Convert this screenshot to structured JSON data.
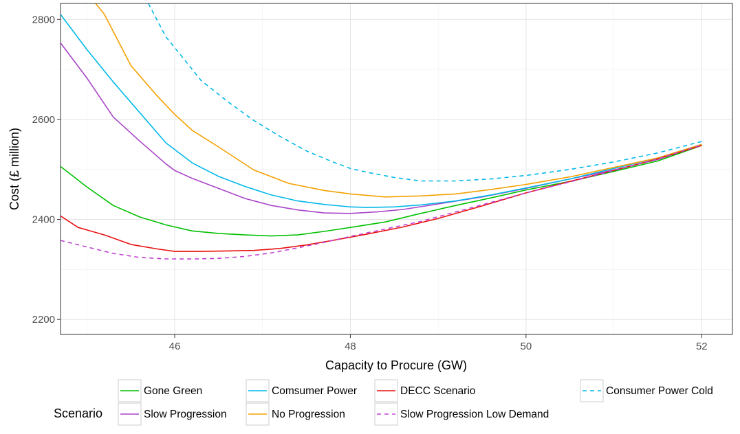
{
  "chart_data": {
    "type": "line",
    "xlabel": "Capacity to Procure (GW)",
    "ylabel": "Cost (£ million)",
    "xlim": [
      44.7,
      52.35
    ],
    "ylim": [
      2170,
      2832
    ],
    "x_ticks": [
      46,
      48,
      50,
      52
    ],
    "y_ticks": [
      2200,
      2400,
      2600,
      2800
    ],
    "grid": true,
    "legend_title": "Scenario",
    "legend_position": "bottom",
    "series": [
      {
        "name": "Gone Green",
        "color": "#00c000",
        "dash": "solid",
        "points": [
          [
            44.7,
            2506
          ],
          [
            45.0,
            2465
          ],
          [
            45.3,
            2428
          ],
          [
            45.6,
            2405
          ],
          [
            45.9,
            2389
          ],
          [
            46.2,
            2377
          ],
          [
            46.5,
            2372
          ],
          [
            46.8,
            2369
          ],
          [
            47.1,
            2367
          ],
          [
            47.4,
            2369
          ],
          [
            47.7,
            2376
          ],
          [
            48.0,
            2384
          ],
          [
            48.4,
            2395
          ],
          [
            48.8,
            2412
          ],
          [
            49.2,
            2428
          ],
          [
            49.6,
            2443
          ],
          [
            50.0,
            2459
          ],
          [
            50.5,
            2476
          ],
          [
            51.0,
            2496
          ],
          [
            51.5,
            2517
          ],
          [
            52.0,
            2548
          ]
        ]
      },
      {
        "name": "Slow Progression",
        "color": "#a844c8",
        "dash": "solid",
        "points": [
          [
            44.7,
            2753
          ],
          [
            45.0,
            2683
          ],
          [
            45.3,
            2605
          ],
          [
            45.6,
            2557
          ],
          [
            45.9,
            2511
          ],
          [
            46.0,
            2498
          ],
          [
            46.2,
            2482
          ],
          [
            46.5,
            2462
          ],
          [
            46.8,
            2442
          ],
          [
            47.1,
            2428
          ],
          [
            47.4,
            2419
          ],
          [
            47.7,
            2413
          ],
          [
            48.0,
            2412
          ],
          [
            48.3,
            2415
          ],
          [
            48.6,
            2420
          ],
          [
            49.0,
            2431
          ],
          [
            49.5,
            2445
          ],
          [
            50.0,
            2462
          ],
          [
            50.5,
            2481
          ],
          [
            51.0,
            2499
          ],
          [
            51.5,
            2520
          ],
          [
            52.0,
            2549
          ]
        ]
      },
      {
        "name": "Comsumer Power",
        "color": "#00b8e8",
        "dash": "solid",
        "points": [
          [
            44.7,
            2810
          ],
          [
            45.0,
            2740
          ],
          [
            45.3,
            2675
          ],
          [
            45.6,
            2614
          ],
          [
            45.9,
            2553
          ],
          [
            46.2,
            2513
          ],
          [
            46.5,
            2486
          ],
          [
            46.8,
            2466
          ],
          [
            47.1,
            2449
          ],
          [
            47.4,
            2437
          ],
          [
            47.7,
            2430
          ],
          [
            48.0,
            2425
          ],
          [
            48.2,
            2424
          ],
          [
            48.5,
            2425
          ],
          [
            48.8,
            2429
          ],
          [
            49.2,
            2437
          ],
          [
            49.6,
            2449
          ],
          [
            50.0,
            2463
          ],
          [
            50.5,
            2481
          ],
          [
            51.0,
            2502
          ],
          [
            51.5,
            2523
          ],
          [
            52.0,
            2550
          ]
        ]
      },
      {
        "name": "No Progression",
        "color": "#f5a000",
        "dash": "solid",
        "points": [
          [
            45.1,
            2832
          ],
          [
            45.2,
            2810
          ],
          [
            45.5,
            2708
          ],
          [
            45.8,
            2647
          ],
          [
            46.0,
            2610
          ],
          [
            46.2,
            2578
          ],
          [
            46.5,
            2545
          ],
          [
            46.9,
            2499
          ],
          [
            47.3,
            2472
          ],
          [
            47.7,
            2458
          ],
          [
            48.0,
            2451
          ],
          [
            48.4,
            2445
          ],
          [
            48.8,
            2447
          ],
          [
            49.2,
            2451
          ],
          [
            49.6,
            2460
          ],
          [
            50.0,
            2470
          ],
          [
            50.5,
            2485
          ],
          [
            51.0,
            2504
          ],
          [
            51.5,
            2523
          ],
          [
            52.0,
            2550
          ]
        ]
      },
      {
        "name": "DECC Scenario",
        "color": "#e81010",
        "dash": "solid",
        "points": [
          [
            44.7,
            2407
          ],
          [
            44.9,
            2384
          ],
          [
            45.2,
            2369
          ],
          [
            45.5,
            2350
          ],
          [
            45.8,
            2341
          ],
          [
            46.0,
            2336
          ],
          [
            46.3,
            2336
          ],
          [
            46.6,
            2337
          ],
          [
            46.9,
            2338
          ],
          [
            47.2,
            2342
          ],
          [
            47.5,
            2349
          ],
          [
            47.8,
            2358
          ],
          [
            48.2,
            2371
          ],
          [
            48.6,
            2385
          ],
          [
            49.0,
            2402
          ],
          [
            49.5,
            2427
          ],
          [
            50.0,
            2453
          ],
          [
            50.5,
            2476
          ],
          [
            51.0,
            2498
          ],
          [
            51.5,
            2521
          ],
          [
            52.0,
            2548
          ]
        ]
      },
      {
        "name": "Slow Progression Low Demand",
        "color": "#c040d0",
        "dash": "dashed",
        "points": [
          [
            44.7,
            2358
          ],
          [
            45.0,
            2345
          ],
          [
            45.3,
            2332
          ],
          [
            45.6,
            2324
          ],
          [
            45.9,
            2321
          ],
          [
            46.2,
            2321
          ],
          [
            46.5,
            2322
          ],
          [
            46.8,
            2326
          ],
          [
            47.1,
            2333
          ],
          [
            47.4,
            2343
          ],
          [
            47.7,
            2354
          ],
          [
            48.0,
            2366
          ],
          [
            48.4,
            2381
          ],
          [
            48.8,
            2396
          ],
          [
            49.2,
            2415
          ],
          [
            49.6,
            2434
          ],
          [
            50.0,
            2453
          ],
          [
            50.5,
            2475
          ],
          [
            51.0,
            2498
          ],
          [
            51.5,
            2521
          ],
          [
            52.0,
            2549
          ]
        ]
      },
      {
        "name": "Consumer Power Cold",
        "color": "#00b8e8",
        "dash": "dashed",
        "points": [
          [
            45.7,
            2832
          ],
          [
            45.9,
            2765
          ],
          [
            46.1,
            2722
          ],
          [
            46.3,
            2678
          ],
          [
            46.6,
            2636
          ],
          [
            46.9,
            2598
          ],
          [
            47.2,
            2566
          ],
          [
            47.5,
            2537
          ],
          [
            47.8,
            2515
          ],
          [
            48.0,
            2502
          ],
          [
            48.2,
            2494
          ],
          [
            48.5,
            2484
          ],
          [
            48.8,
            2477
          ],
          [
            49.2,
            2477
          ],
          [
            49.6,
            2481
          ],
          [
            50.0,
            2488
          ],
          [
            50.5,
            2500
          ],
          [
            51.0,
            2515
          ],
          [
            51.5,
            2533
          ],
          [
            52.0,
            2556
          ]
        ]
      }
    ]
  }
}
